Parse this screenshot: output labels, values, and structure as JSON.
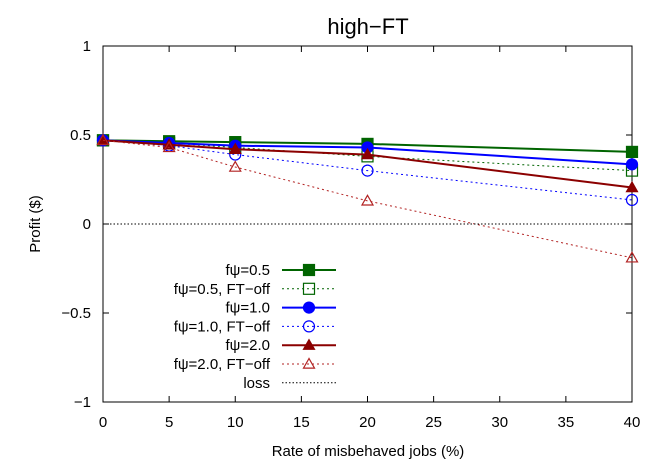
{
  "chart_data": {
    "type": "line",
    "title": "high−FT",
    "xlabel": "Rate of misbehaved jobs (%)",
    "ylabel": "Profit ($)",
    "xlim": [
      0,
      40
    ],
    "ylim": [
      -1,
      1
    ],
    "x_ticks": [
      "0",
      "5",
      "10",
      "15",
      "20",
      "25",
      "30",
      "35",
      "40"
    ],
    "y_ticks": [
      "−1",
      "−0.5",
      "0",
      "0.5",
      "1"
    ],
    "grid": false,
    "legend_position": "bottom-left",
    "x": [
      0,
      5,
      10,
      20,
      40
    ],
    "series": [
      {
        "name": "fψ=0.5",
        "values": [
          0.47,
          0.465,
          0.46,
          0.45,
          0.405
        ],
        "color": "#006400",
        "line": "solid",
        "marker": "filled-square"
      },
      {
        "name": "fψ=0.5, FT−off",
        "values": [
          0.47,
          0.455,
          0.43,
          0.38,
          0.3
        ],
        "color": "#006400",
        "line": "dotted",
        "marker": "open-square"
      },
      {
        "name": "fψ=1.0",
        "values": [
          0.47,
          0.455,
          0.44,
          0.43,
          0.335
        ],
        "color": "#0000ff",
        "line": "solid",
        "marker": "filled-circle"
      },
      {
        "name": "fψ=1.0, FT−off",
        "values": [
          0.47,
          0.44,
          0.39,
          0.3,
          0.135
        ],
        "color": "#0000ff",
        "line": "dotted",
        "marker": "open-circle"
      },
      {
        "name": "fψ=2.0",
        "values": [
          0.47,
          0.445,
          0.42,
          0.39,
          0.205
        ],
        "color": "#8b0000",
        "line": "solid",
        "marker": "filled-triangle"
      },
      {
        "name": "fψ=2.0, FT−off",
        "values": [
          0.47,
          0.43,
          0.32,
          0.13,
          -0.19
        ],
        "color": "#b22222",
        "line": "dotted",
        "marker": "open-triangle"
      },
      {
        "name": "loss",
        "values": [
          0,
          0,
          0,
          0,
          0
        ],
        "color": "#000000",
        "line": "dotted",
        "marker": "none"
      }
    ]
  }
}
